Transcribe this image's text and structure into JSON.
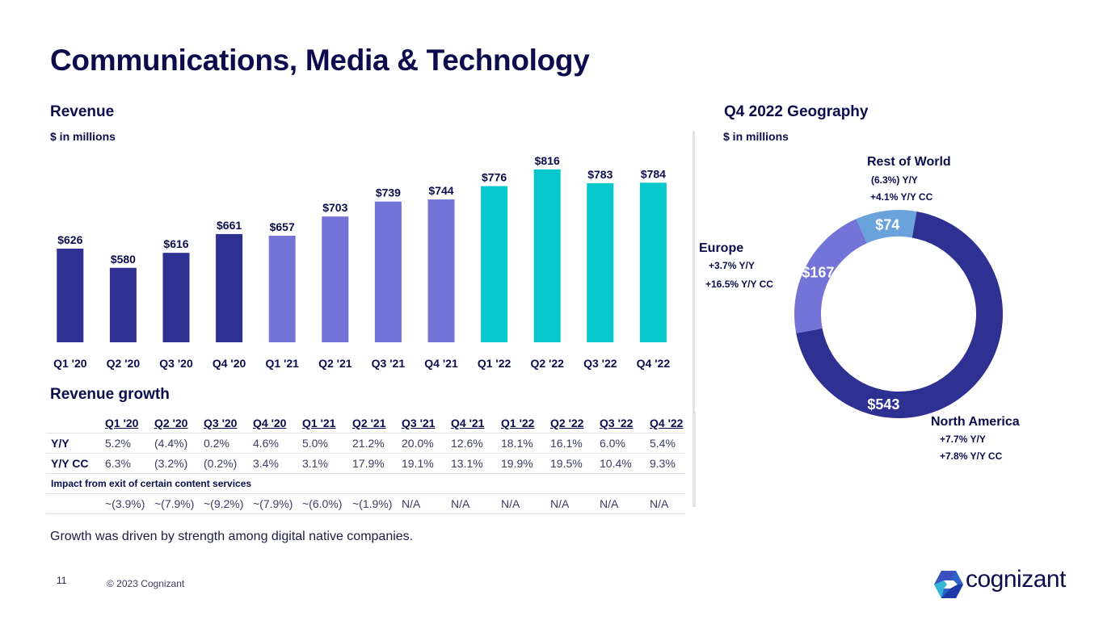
{
  "page": {
    "title": "Communications, Media & Technology",
    "footnote": "Growth was driven by strength among digital native companies.",
    "page_number": "11",
    "copyright": "© 2023 Cognizant",
    "logo_text": "cognizant"
  },
  "revenue": {
    "heading": "Revenue",
    "unit": "$ in millions"
  },
  "geography": {
    "heading": "Q4 2022 Geography",
    "unit": "$ in millions",
    "regions": [
      {
        "name": "North America",
        "value_label": "$543",
        "yy": "+7.7%  Y/Y",
        "yycc": "+7.8%  Y/Y CC"
      },
      {
        "name": "Europe",
        "value_label": "$167",
        "yy": "+3.7%  Y/Y",
        "yycc": "+16.5%  Y/Y CC"
      },
      {
        "name": "Rest of World",
        "value_label": "$74",
        "yy": "(6.3%) Y/Y",
        "yycc": "+4.1%  Y/Y CC"
      }
    ]
  },
  "growth_table": {
    "heading": "Revenue growth",
    "columns": [
      "Q1 '20",
      "Q2 '20",
      "Q3 '20",
      "Q4 '20",
      "Q1 '21",
      "Q2 '21",
      "Q3 '21",
      "Q4 '21",
      "Q1 '22",
      "Q2 '22",
      "Q3 '22",
      "Q4 '22"
    ],
    "rows": [
      {
        "label": "Y/Y",
        "values": [
          "5.2%",
          "(4.4%)",
          "0.2%",
          "4.6%",
          "5.0%",
          "21.2%",
          "20.0%",
          "12.6%",
          "18.1%",
          "16.1%",
          "6.0%",
          "5.4%"
        ]
      },
      {
        "label": "Y/Y CC",
        "values": [
          "6.3%",
          "(3.2%)",
          "(0.2%)",
          "3.4%",
          "3.1%",
          "17.9%",
          "19.1%",
          "13.1%",
          "19.9%",
          "19.5%",
          "10.4%",
          "9.3%"
        ]
      }
    ],
    "impact_label": "Impact from exit of certain content services",
    "impact_values": [
      "~(3.9%)",
      "~(7.9%)",
      "~(9.2%)",
      "~(7.9%)",
      "~(6.0%)",
      "~(1.9%)",
      "N/A",
      "N/A",
      "N/A",
      "N/A",
      "N/A",
      "N/A"
    ]
  },
  "colors": {
    "navy": "#2e3192",
    "purple": "#7373d8",
    "teal": "#06c7cc",
    "light_blue": "#6aa3dc",
    "text": "#0c0c4c"
  },
  "chart_data": [
    {
      "type": "bar",
      "title": "Revenue",
      "ylabel": "$ in millions",
      "xlabel": "",
      "categories": [
        "Q1 '20",
        "Q2 '20",
        "Q3 '20",
        "Q4 '20",
        "Q1 '21",
        "Q2 '21",
        "Q3 '21",
        "Q4 '21",
        "Q1 '22",
        "Q2 '22",
        "Q3 '22",
        "Q4 '22"
      ],
      "values": [
        626,
        580,
        616,
        661,
        657,
        703,
        739,
        744,
        776,
        816,
        783,
        784
      ],
      "data_labels": [
        "$626",
        "$580",
        "$616",
        "$661",
        "$657",
        "$703",
        "$739",
        "$744",
        "$776",
        "$816",
        "$783",
        "$784"
      ],
      "series_colors_by_year": {
        "2020": "#2e3192",
        "2021": "#7373d8",
        "2022": "#06c7cc"
      },
      "ylim": [
        400,
        830
      ],
      "grid": false,
      "legend": "none"
    },
    {
      "type": "pie",
      "title": "Q4 2022 Geography",
      "subtitle": "$ in millions",
      "donut": true,
      "labels": [
        "North America",
        "Europe",
        "Rest of World"
      ],
      "values": [
        543,
        167,
        74
      ],
      "colors": [
        "#2e3192",
        "#7373d8",
        "#6aa3dc"
      ],
      "legend": "none"
    }
  ]
}
